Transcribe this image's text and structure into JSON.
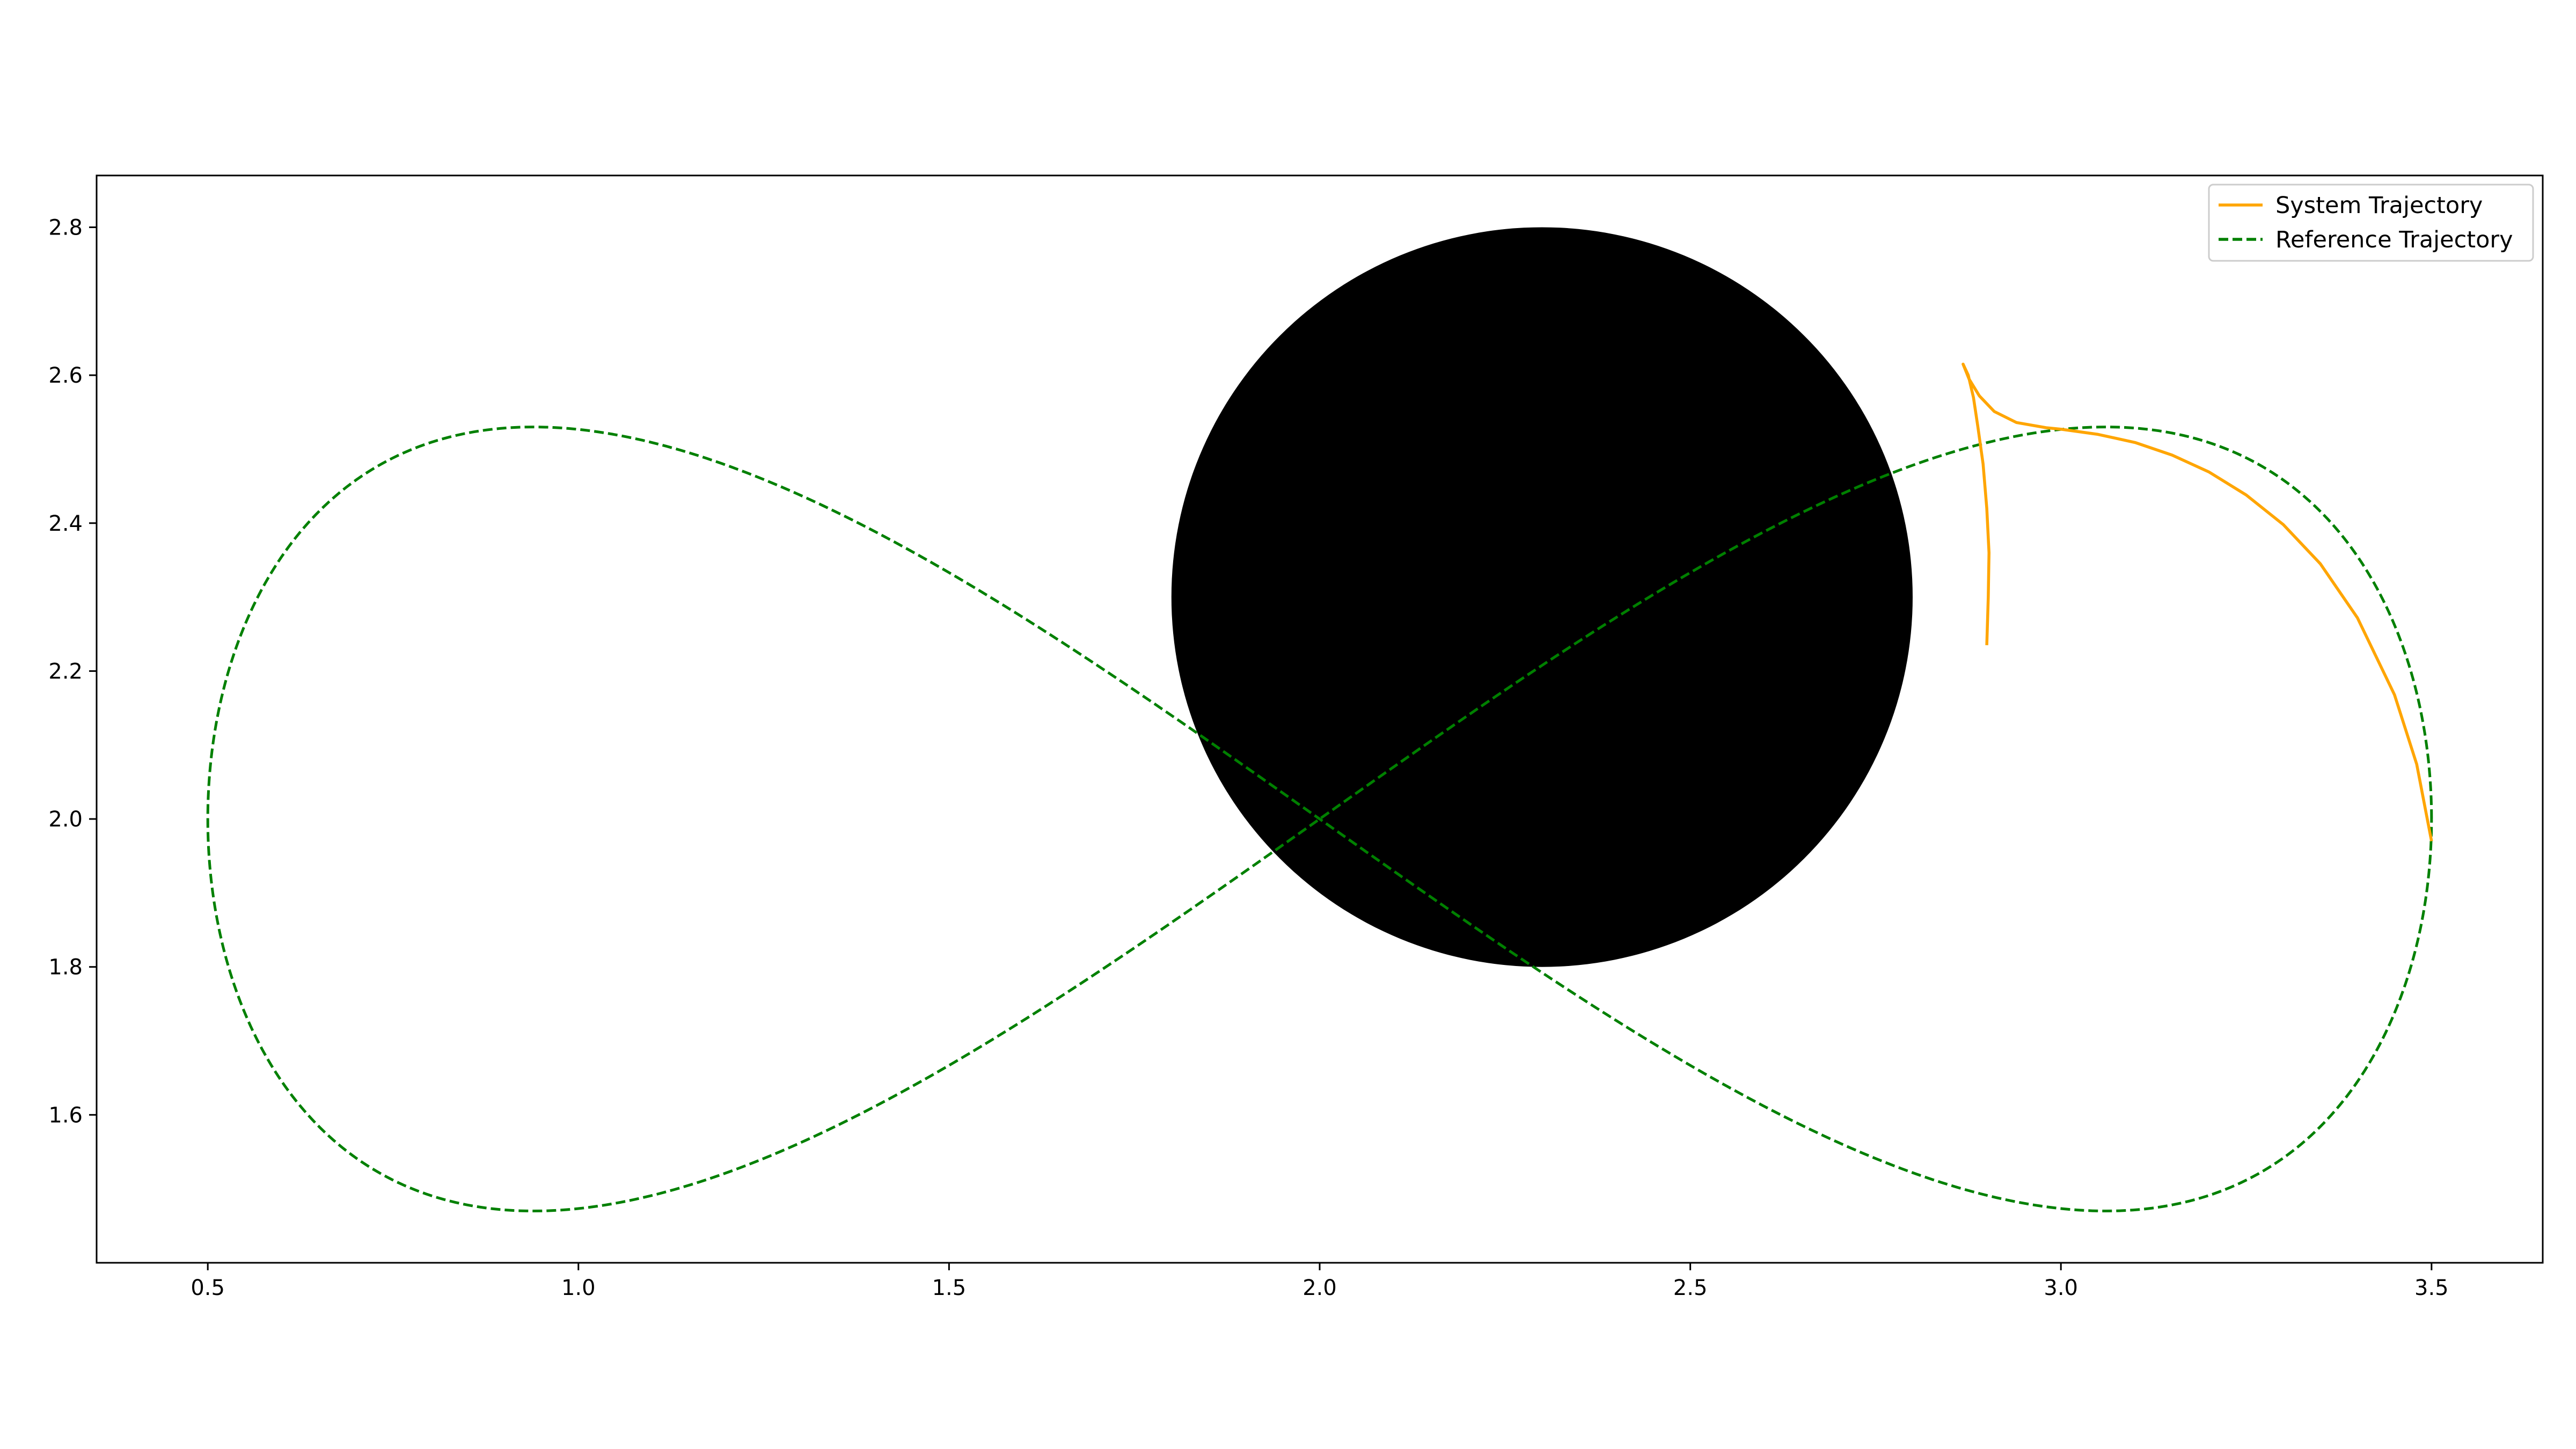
{
  "chart_data": {
    "type": "line",
    "title": "",
    "xlabel": "",
    "ylabel": "",
    "xlim": [
      0.35,
      3.65
    ],
    "ylim": [
      1.4,
      2.87
    ],
    "x_ticks": [
      0.5,
      1.0,
      1.5,
      2.0,
      2.5,
      3.0,
      3.5
    ],
    "x_tick_labels": [
      "0.5",
      "1.0",
      "1.5",
      "2.0",
      "2.5",
      "3.0",
      "3.5"
    ],
    "y_ticks": [
      1.6,
      1.8,
      2.0,
      2.2,
      2.4,
      2.6,
      2.8
    ],
    "y_tick_labels": [
      "1.6",
      "1.8",
      "2.0",
      "2.2",
      "2.4",
      "2.6",
      "2.8"
    ],
    "grid": false,
    "legend_position": "top-right",
    "obstacle": {
      "shape": "circle",
      "center": [
        2.3,
        2.3
      ],
      "radius": 0.5,
      "color": "#000000"
    },
    "series": [
      {
        "name": "System Trajectory",
        "color": "#ffa500",
        "style": "solid",
        "points": [
          [
            2.9,
            2.235
          ],
          [
            2.902,
            2.3
          ],
          [
            2.903,
            2.36
          ],
          [
            2.9,
            2.42
          ],
          [
            2.895,
            2.48
          ],
          [
            2.888,
            2.53
          ],
          [
            2.882,
            2.57
          ],
          [
            2.875,
            2.6
          ],
          [
            2.868,
            2.615
          ],
          [
            2.876,
            2.595
          ],
          [
            2.89,
            2.572
          ],
          [
            2.91,
            2.551
          ],
          [
            2.94,
            2.536
          ],
          [
            2.98,
            2.529
          ],
          [
            3.0,
            2.527
          ],
          [
            3.05,
            2.52
          ],
          [
            3.1,
            2.509
          ],
          [
            3.15,
            2.492
          ],
          [
            3.2,
            2.469
          ],
          [
            3.25,
            2.438
          ],
          [
            3.3,
            2.398
          ],
          [
            3.35,
            2.345
          ],
          [
            3.4,
            2.272
          ],
          [
            3.45,
            2.168
          ],
          [
            3.48,
            2.074
          ],
          [
            3.5,
            1.97
          ]
        ]
      },
      {
        "name": "Reference Trajectory",
        "color": "#008000",
        "style": "dashed",
        "parametric": {
          "x_center": 2.0,
          "x_amplitude": 1.5,
          "y_center": 2.0,
          "y_amplitude": 0.53,
          "form": "x = 2.0 + 1.5*cos(t), y = 2.0 + 0.53*sin(2t)"
        }
      }
    ]
  }
}
